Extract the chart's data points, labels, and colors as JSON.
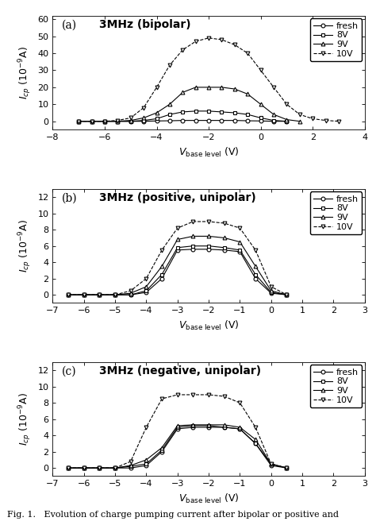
{
  "panel_a": {
    "title": "3MHz (bipolar)",
    "label": "(a)",
    "xlim": [
      -8,
      4
    ],
    "ylim": [
      -5,
      62
    ],
    "yticks": [
      0,
      10,
      20,
      30,
      40,
      50,
      60
    ],
    "xticks": [
      -8,
      -6,
      -4,
      -2,
      0,
      2,
      4
    ],
    "xlabel_base": "V",
    "xlabel_sub": "base level",
    "xlabel_unit": " (V)",
    "ylabel": "$I_{cp}$ $(10^{-9}$A)",
    "series": {
      "fresh": {
        "x": [
          -7,
          -6.5,
          -6,
          -5.5,
          -5,
          -4.5,
          -4,
          -3.5,
          -3,
          -2.5,
          -2,
          -1.5,
          -1,
          -0.5,
          0,
          0.5,
          1
        ],
        "y": [
          0,
          0,
          0,
          0,
          0,
          0,
          0.2,
          0.3,
          0.5,
          0.5,
          0.5,
          0.5,
          0.5,
          0.3,
          0.2,
          0,
          0
        ]
      },
      "8V": {
        "x": [
          -7,
          -6.5,
          -6,
          -5.5,
          -5,
          -4.5,
          -4,
          -3.5,
          -3,
          -2.5,
          -2,
          -1.5,
          -1,
          -0.5,
          0,
          0.5,
          1
        ],
        "y": [
          0,
          0,
          0,
          0,
          0,
          0.5,
          1.5,
          4,
          5.5,
          6,
          6,
          5.5,
          5,
          4,
          2,
          0.5,
          0
        ]
      },
      "9V": {
        "x": [
          -7,
          -6.5,
          -6,
          -5.5,
          -5,
          -4.5,
          -4,
          -3.5,
          -3,
          -2.5,
          -2,
          -1.5,
          -1,
          -0.5,
          0,
          0.5,
          1,
          1.5
        ],
        "y": [
          0,
          0,
          0,
          0,
          0.5,
          2,
          5,
          10,
          17,
          20,
          20,
          20,
          19,
          16,
          10,
          4,
          1,
          0
        ]
      },
      "10V": {
        "x": [
          -7,
          -6.5,
          -6,
          -5.5,
          -5,
          -4.5,
          -4,
          -3.5,
          -3,
          -2.5,
          -2,
          -1.5,
          -1,
          -0.5,
          0,
          0.5,
          1,
          1.5,
          2,
          2.5,
          3
        ],
        "y": [
          0,
          0,
          0,
          0.5,
          2,
          8,
          20,
          33,
          42,
          47,
          49,
          48,
          45,
          40,
          30,
          20,
          10,
          4,
          1.5,
          0.5,
          0
        ]
      }
    }
  },
  "panel_b": {
    "title": "3MHz (positive, unipolar)",
    "label": "(b)",
    "xlim": [
      -7,
      3
    ],
    "ylim": [
      -1,
      13
    ],
    "yticks": [
      0,
      2,
      4,
      6,
      8,
      10,
      12
    ],
    "xticks": [
      -7,
      -6,
      -5,
      -4,
      -3,
      -2,
      -1,
      0,
      1,
      2,
      3
    ],
    "xlabel_base": "V",
    "xlabel_sub": "base level",
    "xlabel_unit": " (V)",
    "ylabel": "$I_{cp}$ $(10^{-9}$A)",
    "series": {
      "fresh": {
        "x": [
          -6.5,
          -6,
          -5.5,
          -5,
          -4.5,
          -4,
          -3.5,
          -3,
          -2.5,
          -2,
          -1.5,
          -1,
          -0.5,
          0,
          0.5
        ],
        "y": [
          0,
          0,
          0,
          0,
          0,
          0.3,
          2,
          5.5,
          5.6,
          5.6,
          5.5,
          5.3,
          2,
          0.2,
          0
        ]
      },
      "8V": {
        "x": [
          -6.5,
          -6,
          -5.5,
          -5,
          -4.5,
          -4,
          -3.5,
          -3,
          -2.5,
          -2,
          -1.5,
          -1,
          -0.5,
          0,
          0.5
        ],
        "y": [
          0,
          0,
          0,
          0,
          0,
          0.5,
          2.5,
          5.8,
          6,
          6,
          5.8,
          5.5,
          2.5,
          0.3,
          0
        ]
      },
      "9V": {
        "x": [
          -6.5,
          -6,
          -5.5,
          -5,
          -4.5,
          -4,
          -3.5,
          -3,
          -2.5,
          -2,
          -1.5,
          -1,
          -0.5,
          0,
          0.5
        ],
        "y": [
          0,
          0,
          0,
          0,
          0.2,
          1,
          3.5,
          6.8,
          7.2,
          7.2,
          7,
          6.5,
          3.5,
          0.5,
          0
        ]
      },
      "10V": {
        "x": [
          -6.5,
          -6,
          -5.5,
          -5,
          -4.5,
          -4,
          -3.5,
          -3,
          -2.5,
          -2,
          -1.5,
          -1,
          -0.5,
          0,
          0.5
        ],
        "y": [
          0,
          0,
          0,
          0,
          0.5,
          2,
          5.5,
          8.2,
          9,
          9,
          8.8,
          8.2,
          5.5,
          1,
          0
        ]
      }
    }
  },
  "panel_c": {
    "title": "3MHz (negative, unipolar)",
    "label": "(c)",
    "xlim": [
      -7,
      3
    ],
    "ylim": [
      -1,
      13
    ],
    "yticks": [
      0,
      2,
      4,
      6,
      8,
      10,
      12
    ],
    "xticks": [
      -7,
      -6,
      -5,
      -4,
      -3,
      -2,
      -1,
      0,
      1,
      2,
      3
    ],
    "xlabel_base": "V",
    "xlabel_sub": "base level",
    "xlabel_unit": " (V)",
    "ylabel": "$I_{cp}$ $(10^{-9}$A)",
    "series": {
      "fresh": {
        "x": [
          -6.5,
          -6,
          -5.5,
          -5,
          -4.5,
          -4,
          -3.5,
          -3,
          -2.5,
          -2,
          -1.5,
          -1,
          -0.5,
          0,
          0.5
        ],
        "y": [
          0,
          0,
          0,
          0,
          0,
          0.3,
          2,
          4.8,
          5,
          5,
          5,
          4.8,
          3,
          0.3,
          0
        ]
      },
      "8V": {
        "x": [
          -6.5,
          -6,
          -5.5,
          -5,
          -4.5,
          -4,
          -3.5,
          -3,
          -2.5,
          -2,
          -1.5,
          -1,
          -0.5,
          0,
          0.5
        ],
        "y": [
          0,
          0,
          0,
          0,
          0.2,
          0.5,
          2.2,
          5,
          5.2,
          5.2,
          5,
          4.8,
          3,
          0.5,
          0
        ]
      },
      "9V": {
        "x": [
          -6.5,
          -6,
          -5.5,
          -5,
          -4.5,
          -4,
          -3.5,
          -3,
          -2.5,
          -2,
          -1.5,
          -1,
          -0.5,
          0,
          0.5
        ],
        "y": [
          0,
          0,
          0,
          0,
          0.3,
          1,
          2.5,
          5.2,
          5.3,
          5.3,
          5.3,
          5,
          3.5,
          0.5,
          0
        ]
      },
      "10V": {
        "x": [
          -6.5,
          -6,
          -5.5,
          -5,
          -4.5,
          -4,
          -3.5,
          -3,
          -2.5,
          -2,
          -1.5,
          -1,
          -0.5,
          0,
          0.5
        ],
        "y": [
          0,
          0,
          0,
          0,
          0.8,
          5,
          8.5,
          9,
          9,
          9,
          8.8,
          8,
          5,
          0.5,
          0
        ]
      }
    }
  },
  "caption": "Fig. 1.   Evolution of charge pumping current after bipolar or positive and",
  "legend_labels": [
    "fresh",
    "8V",
    "9V",
    "10V"
  ],
  "line_color": "#000000",
  "fontsize_title": 10,
  "fontsize_label": 9,
  "fontsize_tick": 8,
  "fontsize_legend": 8,
  "fontsize_caption": 8
}
